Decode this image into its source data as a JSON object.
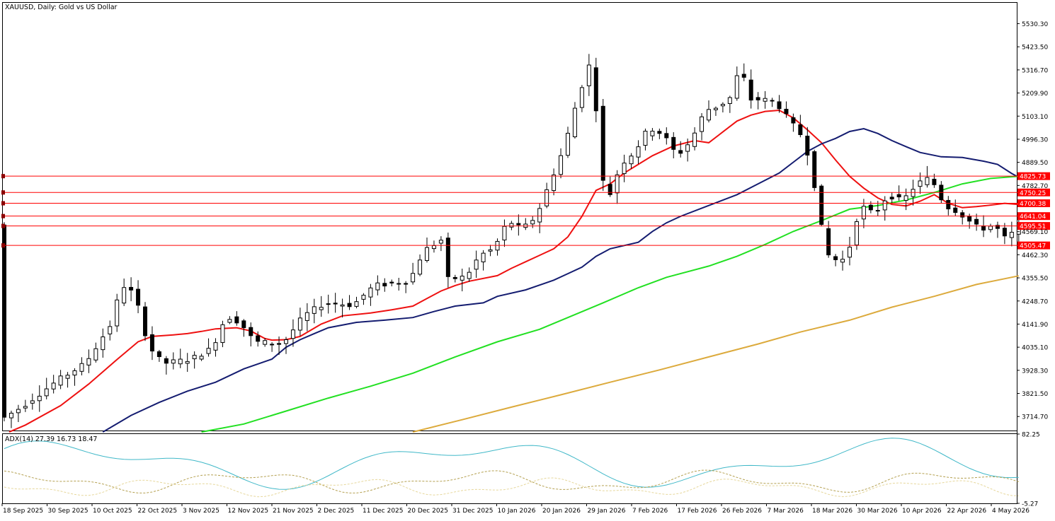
{
  "header": {
    "title": "XAUUSD, Daily:  Gold vs US Dollar",
    "indicator_title": "ADX(14) 27.39 16.73 18.47"
  },
  "price_axis": {
    "ticks": [
      "5530.30",
      "5423.50",
      "5316.70",
      "5209.90",
      "5103.10",
      "4996.30",
      "4889.50",
      "4782.70",
      "4569.10",
      "4462.30",
      "4355.50",
      "4248.70",
      "4141.90",
      "4035.10",
      "3928.30",
      "3821.50",
      "3714.70"
    ]
  },
  "adx_axis": {
    "ticks": [
      "82.25",
      "-5.27"
    ]
  },
  "date_axis": {
    "labels": [
      "18 Sep 2025",
      "30 Sep 2025",
      "10 Oct 2025",
      "22 Oct 2025",
      "3 Nov 2025",
      "12 Nov 2025",
      "21 Nov 2025",
      "2 Dec 2025",
      "11 Dec 2025",
      "20 Dec 2025",
      "31 Dec 2025",
      "10 Jan 2026",
      "20 Jan 2026",
      "29 Jan 2026",
      "7 Feb 2026",
      "17 Feb 2026",
      "26 Feb 2026",
      "7 Mar 2026",
      "18 Mar 2026",
      "30 Mar 2026",
      "10 Apr 2026",
      "22 Apr 2026",
      "4 May 2026"
    ]
  },
  "levels": [
    {
      "value": 4825.73,
      "label": "4825.73"
    },
    {
      "value": 4750.25,
      "label": "4750.25"
    },
    {
      "value": 4700.38,
      "label": "4700.38"
    },
    {
      "value": 4641.04,
      "label": "4641.04"
    },
    {
      "value": 4595.51,
      "label": "4595.51"
    },
    {
      "value": 4505.47,
      "label": "4505.47"
    }
  ],
  "colors": {
    "level_line": "#ff0000",
    "level_badge": "#ff0000",
    "ma_red": "#ee1111",
    "ma_navy": "#141c70",
    "ma_green": "#22e022",
    "ma_gold": "#dcaa3c",
    "adx_main": "#40b8c8",
    "adx_plus": "#b4a050",
    "adx_minus": "#e6d79b",
    "candle": "#000000"
  },
  "chart_data": {
    "type": "candlestick",
    "symbol": "XAUUSD",
    "timeframe": "Daily",
    "ylim": [
      3650,
      5630
    ],
    "grid": false,
    "moving_averages": [
      {
        "color": "red",
        "points": [
          [
            0.7,
            3643
          ],
          [
            3,
            3675
          ],
          [
            8,
            3765
          ],
          [
            12,
            3865
          ],
          [
            16,
            3978
          ],
          [
            19,
            4060
          ],
          [
            21,
            4085
          ],
          [
            24,
            4092
          ],
          [
            26,
            4098
          ],
          [
            28,
            4108
          ],
          [
            30,
            4120
          ],
          [
            33,
            4125
          ],
          [
            35,
            4110
          ],
          [
            37,
            4075
          ],
          [
            38,
            4068
          ],
          [
            40,
            4070
          ],
          [
            42,
            4085
          ],
          [
            45,
            4142
          ],
          [
            48,
            4180
          ],
          [
            52,
            4193
          ],
          [
            55,
            4208
          ],
          [
            58,
            4225
          ],
          [
            60,
            4260
          ],
          [
            62,
            4295
          ],
          [
            64,
            4320
          ],
          [
            66,
            4340
          ],
          [
            70,
            4366
          ],
          [
            72,
            4400
          ],
          [
            74,
            4430
          ],
          [
            76,
            4460
          ],
          [
            78,
            4490
          ],
          [
            80,
            4545
          ],
          [
            82,
            4640
          ],
          [
            84,
            4760
          ],
          [
            86,
            4790
          ],
          [
            88,
            4840
          ],
          [
            90,
            4880
          ],
          [
            92,
            4920
          ],
          [
            95,
            4965
          ],
          [
            98,
            4990
          ],
          [
            100,
            4980
          ],
          [
            102,
            5030
          ],
          [
            104,
            5080
          ],
          [
            106,
            5108
          ],
          [
            108,
            5125
          ],
          [
            110,
            5130
          ],
          [
            112,
            5095
          ],
          [
            114,
            5040
          ],
          [
            116,
            4980
          ],
          [
            118,
            4900
          ],
          [
            120,
            4825
          ],
          [
            122,
            4770
          ],
          [
            124,
            4725
          ],
          [
            126,
            4695
          ],
          [
            128,
            4688
          ],
          [
            130,
            4710
          ],
          [
            132,
            4740
          ],
          [
            134,
            4700
          ],
          [
            136,
            4680
          ],
          [
            138,
            4685
          ],
          [
            140,
            4692
          ],
          [
            142,
            4700
          ],
          [
            144,
            4695
          ]
        ]
      },
      {
        "color": "navy",
        "points": [
          [
            14,
            3643
          ],
          [
            18,
            3720
          ],
          [
            22,
            3780
          ],
          [
            26,
            3832
          ],
          [
            30,
            3873
          ],
          [
            34,
            3935
          ],
          [
            38,
            3980
          ],
          [
            40,
            4035
          ],
          [
            42,
            4070
          ],
          [
            44,
            4098
          ],
          [
            46,
            4125
          ],
          [
            50,
            4150
          ],
          [
            54,
            4160
          ],
          [
            58,
            4172
          ],
          [
            61,
            4200
          ],
          [
            64,
            4225
          ],
          [
            68,
            4240
          ],
          [
            70,
            4270
          ],
          [
            74,
            4300
          ],
          [
            78,
            4345
          ],
          [
            80,
            4375
          ],
          [
            82,
            4405
          ],
          [
            84,
            4455
          ],
          [
            86,
            4490
          ],
          [
            90,
            4520
          ],
          [
            92,
            4570
          ],
          [
            94,
            4610
          ],
          [
            96,
            4640
          ],
          [
            100,
            4690
          ],
          [
            104,
            4740
          ],
          [
            107,
            4790
          ],
          [
            110,
            4840
          ],
          [
            112,
            4890
          ],
          [
            114,
            4940
          ],
          [
            116,
            4975
          ],
          [
            118,
            5000
          ],
          [
            120,
            5032
          ],
          [
            122,
            5045
          ],
          [
            124,
            5023
          ],
          [
            126,
            4990
          ],
          [
            128,
            4962
          ],
          [
            130,
            4935
          ],
          [
            133,
            4915
          ],
          [
            136,
            4912
          ],
          [
            139,
            4895
          ],
          [
            141,
            4880
          ],
          [
            143,
            4838
          ],
          [
            144,
            4820
          ]
        ]
      },
      {
        "color": "green",
        "points": [
          [
            28,
            3643
          ],
          [
            34,
            3680
          ],
          [
            40,
            3740
          ],
          [
            46,
            3800
          ],
          [
            52,
            3855
          ],
          [
            58,
            3915
          ],
          [
            64,
            3990
          ],
          [
            70,
            4060
          ],
          [
            76,
            4118
          ],
          [
            80,
            4172
          ],
          [
            85,
            4240
          ],
          [
            90,
            4310
          ],
          [
            94,
            4358
          ],
          [
            100,
            4410
          ],
          [
            104,
            4455
          ],
          [
            108,
            4510
          ],
          [
            112,
            4570
          ],
          [
            116,
            4620
          ],
          [
            120,
            4673
          ],
          [
            124,
            4690
          ],
          [
            128,
            4715
          ],
          [
            132,
            4750
          ],
          [
            136,
            4790
          ],
          [
            140,
            4815
          ],
          [
            144,
            4825
          ]
        ]
      },
      {
        "color": "gold",
        "points": [
          [
            58,
            3643
          ],
          [
            65,
            3700
          ],
          [
            72,
            3758
          ],
          [
            79,
            3815
          ],
          [
            86,
            3873
          ],
          [
            93,
            3930
          ],
          [
            100,
            3990
          ],
          [
            107,
            4050
          ],
          [
            113,
            4105
          ],
          [
            120,
            4160
          ],
          [
            126,
            4220
          ],
          [
            132,
            4270
          ],
          [
            138,
            4325
          ],
          [
            144,
            4365
          ]
        ]
      }
    ],
    "adx": {
      "name": "ADX(14)",
      "values": [
        27.39,
        16.73,
        18.47
      ],
      "ylim": [
        -5.27,
        82.25
      ]
    }
  }
}
